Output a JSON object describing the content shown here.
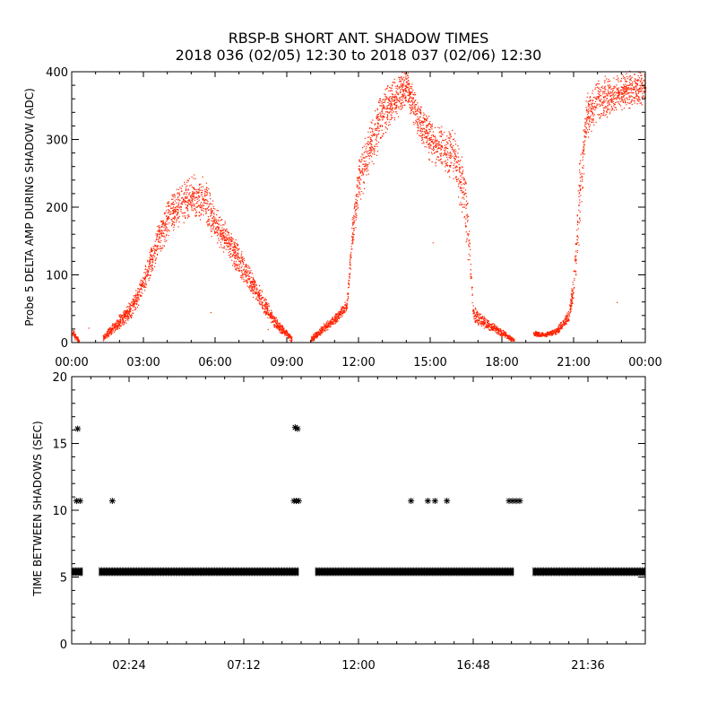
{
  "title_line1": "RBSP-B SHORT ANT. SHADOW TIMES",
  "title_line2": "2018 036 (02/05) 12:30 to 2018 037 (02/06) 12:30",
  "colors": {
    "scatter": "#ff2200",
    "markers": "#000000",
    "axes": "#000000"
  },
  "chart_data": [
    {
      "type": "scatter",
      "name": "delta-amp",
      "ylabel": "Probe 5 DELTA AMP DURING SHADOW (ADC)",
      "xlabel": "",
      "xlim_hours": [
        0,
        24
      ],
      "ylim": [
        0,
        400
      ],
      "x_tick_labels": [
        "00:00",
        "03:00",
        "06:00",
        "09:00",
        "12:00",
        "15:00",
        "18:00",
        "21:00",
        "00:00"
      ],
      "x_tick_hours": [
        0,
        3,
        6,
        9,
        12,
        15,
        18,
        21,
        24
      ],
      "y_tick_labels": [
        "0",
        "100",
        "200",
        "300",
        "400"
      ],
      "y_tick_values": [
        0,
        100,
        200,
        300,
        400
      ],
      "envelope": [
        {
          "segment": 1,
          "points": [
            [
              0.0,
              15,
              10
            ],
            [
              0.3,
              3,
              3
            ]
          ]
        },
        {
          "segment": 2,
          "points": [
            [
              1.3,
              8,
              5
            ],
            [
              1.8,
              25,
              10
            ],
            [
              2.5,
              50,
              15
            ],
            [
              3.0,
              90,
              20
            ],
            [
              3.5,
              140,
              25
            ],
            [
              4.0,
              185,
              35
            ],
            [
              4.5,
              205,
              35
            ],
            [
              5.0,
              215,
              35
            ],
            [
              5.5,
              215,
              35
            ],
            [
              6.0,
              175,
              30
            ],
            [
              6.5,
              150,
              25
            ],
            [
              7.0,
              120,
              25
            ],
            [
              7.5,
              90,
              20
            ],
            [
              8.0,
              60,
              15
            ],
            [
              8.5,
              30,
              10
            ],
            [
              9.2,
              5,
              5
            ]
          ]
        },
        {
          "segment": 3,
          "points": [
            [
              10.0,
              5,
              5
            ],
            [
              10.5,
              20,
              8
            ],
            [
              11.0,
              35,
              8
            ],
            [
              11.5,
              55,
              10
            ],
            [
              11.7,
              150,
              30
            ],
            [
              12.0,
              240,
              40
            ],
            [
              12.5,
              290,
              40
            ],
            [
              13.0,
              340,
              40
            ],
            [
              13.5,
              360,
              35
            ],
            [
              14.0,
              380,
              30
            ],
            [
              14.5,
              330,
              30
            ],
            [
              15.0,
              300,
              35
            ],
            [
              15.5,
              285,
              35
            ],
            [
              16.0,
              280,
              40
            ],
            [
              16.5,
              200,
              60
            ],
            [
              16.8,
              40,
              15
            ],
            [
              17.5,
              25,
              8
            ],
            [
              18.0,
              15,
              6
            ],
            [
              18.5,
              3,
              3
            ]
          ]
        },
        {
          "segment": 4,
          "points": [
            [
              19.3,
              14,
              4
            ],
            [
              19.8,
              12,
              4
            ],
            [
              20.3,
              18,
              6
            ],
            [
              20.8,
              40,
              10
            ],
            [
              21.0,
              90,
              25
            ],
            [
              21.2,
              200,
              60
            ],
            [
              21.5,
              330,
              40
            ],
            [
              22.0,
              360,
              35
            ],
            [
              23.0,
              370,
              30
            ],
            [
              24.0,
              380,
              30
            ]
          ]
        }
      ],
      "outliers": [
        [
          0.7,
          22
        ],
        [
          5.8,
          45
        ],
        [
          8.2,
          20
        ],
        [
          15.1,
          148
        ],
        [
          22.8,
          60
        ]
      ]
    },
    {
      "type": "scatter",
      "name": "time-between-shadows",
      "ylabel": "TIME BETWEEN SHADOWS (SEC)",
      "xlabel": "",
      "xlim_hours": [
        0,
        24
      ],
      "ylim": [
        0,
        20
      ],
      "x_tick_labels": [
        "02:24",
        "07:12",
        "12:00",
        "16:48",
        "21:36"
      ],
      "x_tick_hours": [
        2.4,
        7.2,
        12.0,
        16.8,
        21.6
      ],
      "y_tick_labels": [
        "0",
        "5",
        "10",
        "15",
        "20"
      ],
      "y_tick_values": [
        0,
        5,
        10,
        15,
        20
      ],
      "marker": "*",
      "baseline_value": 5.4,
      "baseline_ranges_hours": [
        [
          0.0,
          0.45
        ],
        [
          1.15,
          9.5
        ],
        [
          10.2,
          18.5
        ],
        [
          19.3,
          24.0
        ]
      ],
      "points": [
        [
          0.25,
          16.1
        ],
        [
          0.2,
          10.7
        ],
        [
          0.35,
          10.7
        ],
        [
          1.7,
          10.7
        ],
        [
          9.35,
          16.2
        ],
        [
          9.45,
          16.1
        ],
        [
          9.3,
          10.7
        ],
        [
          9.4,
          10.7
        ],
        [
          9.5,
          10.7
        ],
        [
          14.2,
          10.7
        ],
        [
          14.9,
          10.7
        ],
        [
          15.2,
          10.7
        ],
        [
          15.7,
          10.7
        ],
        [
          18.3,
          10.7
        ],
        [
          18.45,
          10.7
        ],
        [
          18.6,
          10.7
        ],
        [
          18.75,
          10.7
        ]
      ]
    }
  ]
}
